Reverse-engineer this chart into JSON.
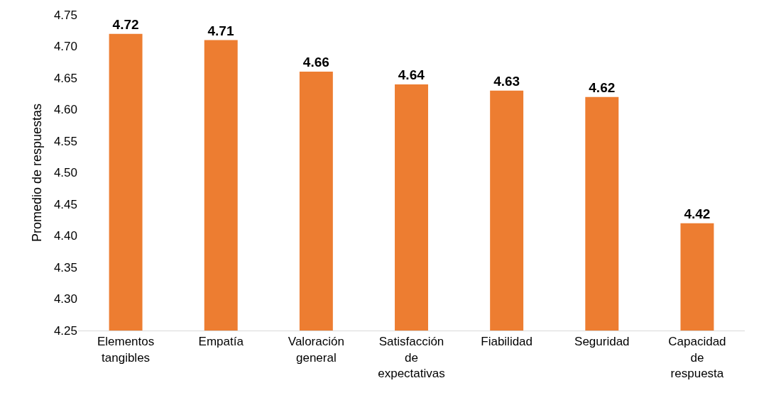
{
  "chart_data": {
    "type": "bar",
    "ylabel": "Promedio de respuestas",
    "categories": [
      "Elementos tangibles",
      "Empatía",
      "Valoración general",
      "Satisfacción de expectativas",
      "Fiabilidad",
      "Seguridad",
      "Capacidad de respuesta"
    ],
    "values": [
      4.72,
      4.71,
      4.66,
      4.64,
      4.63,
      4.62,
      4.42
    ],
    "color": "#ed7d31",
    "ylim": [
      4.25,
      4.75
    ],
    "yticks": [
      4.25,
      {
        "value": 4.3,
        "label": "4.30"
      },
      4.35,
      {
        "value": 4.4,
        "label": "4.40"
      },
      4.45,
      {
        "value": 4.5,
        "label": "4.50"
      },
      4.55,
      {
        "value": 4.6,
        "label": "4.60"
      },
      4.65,
      {
        "value": 4.7,
        "label": "4.70"
      },
      4.75
    ],
    "data_labels": true
  }
}
